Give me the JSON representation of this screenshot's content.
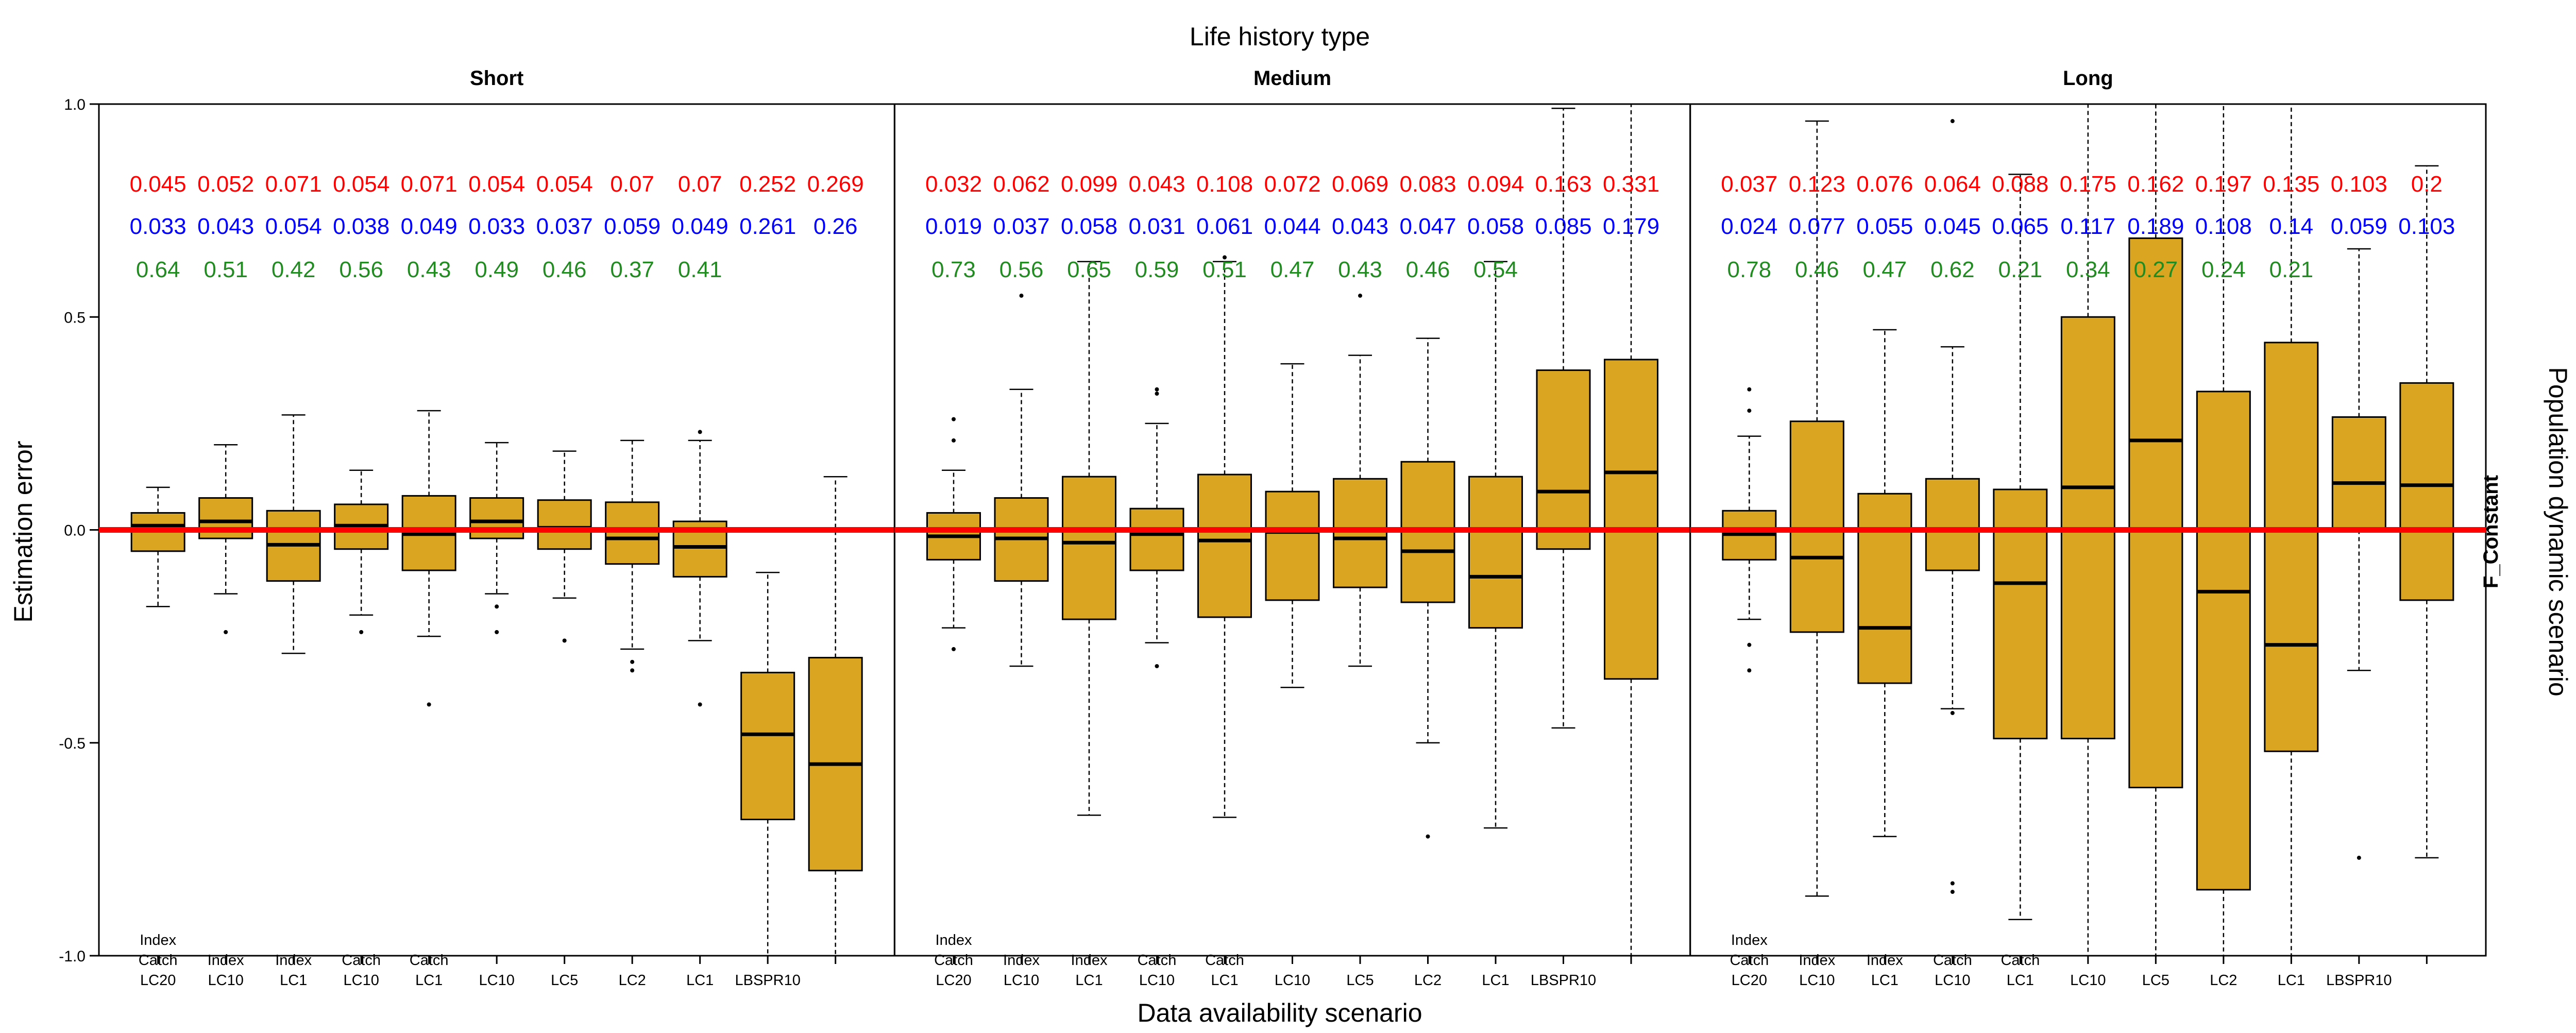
{
  "chart_data": {
    "type": "boxplot",
    "title": "Life history type",
    "xlabel": "Data availability scenario",
    "ylabel": "Estimation error",
    "right_label": "Population dynamic scenario",
    "strip_right": "F_Constant",
    "ylim": [
      -1.0,
      1.0
    ],
    "yticks": [
      "-1.0",
      "-0.5",
      "0.0",
      "0.5",
      "1.0"
    ],
    "reference_line": 0,
    "colors": {
      "box": "#DAA520",
      "reference": "#FF0000",
      "row1": "#FF0000",
      "row2": "#0000FF",
      "row3": "#228B22"
    },
    "panels": [
      {
        "label": "Short",
        "categories": [
          "Index\nCatch\nLC20",
          "Index\nLC10",
          "Index\nLC1",
          "Catch\nLC10",
          "Catch\nLC1",
          "LC10",
          "LC5",
          "LC2",
          "LC1",
          "LBSPR10",
          ""
        ],
        "row1": [
          "0.045",
          "0.052",
          "0.071",
          "0.054",
          "0.071",
          "0.054",
          "0.054",
          "0.07",
          "0.07",
          "0.252",
          "0.269"
        ],
        "row2": [
          "0.033",
          "0.043",
          "0.054",
          "0.038",
          "0.049",
          "0.033",
          "0.037",
          "0.059",
          "0.049",
          "0.261",
          "0.26"
        ],
        "row3": [
          "0.64",
          "0.51",
          "0.42",
          "0.56",
          "0.43",
          "0.49",
          "0.46",
          "0.37",
          "0.41",
          "",
          ""
        ],
        "boxes": [
          {
            "min": -0.18,
            "q1": -0.05,
            "median": 0.01,
            "q3": 0.04,
            "max": 0.1,
            "outliers": []
          },
          {
            "min": -0.15,
            "q1": -0.02,
            "median": 0.02,
            "q3": 0.075,
            "max": 0.2,
            "outliers": [
              -0.24
            ]
          },
          {
            "min": -0.29,
            "q1": -0.12,
            "median": -0.035,
            "q3": 0.045,
            "max": 0.27,
            "outliers": []
          },
          {
            "min": -0.2,
            "q1": -0.045,
            "median": 0.01,
            "q3": 0.06,
            "max": 0.14,
            "outliers": [
              -0.24
            ]
          },
          {
            "min": -0.25,
            "q1": -0.095,
            "median": -0.01,
            "q3": 0.08,
            "max": 0.28,
            "outliers": [
              -0.41
            ]
          },
          {
            "min": -0.15,
            "q1": -0.02,
            "median": 0.02,
            "q3": 0.075,
            "max": 0.205,
            "outliers": [
              -0.18,
              -0.24
            ]
          },
          {
            "min": -0.16,
            "q1": -0.045,
            "median": 0.005,
            "q3": 0.07,
            "max": 0.185,
            "outliers": [
              -0.26
            ]
          },
          {
            "min": -0.28,
            "q1": -0.08,
            "median": -0.02,
            "q3": 0.065,
            "max": 0.21,
            "outliers": [
              -0.31,
              -0.33
            ]
          },
          {
            "min": -0.26,
            "q1": -0.11,
            "median": -0.04,
            "q3": 0.02,
            "max": 0.21,
            "outliers": [
              0.23,
              -0.41
            ]
          },
          {
            "min": -1.0,
            "q1": -0.68,
            "median": -0.48,
            "q3": -0.335,
            "max": -0.1,
            "outliers": []
          },
          {
            "min": -1.0,
            "q1": -0.8,
            "median": -0.55,
            "q3": -0.3,
            "max": 0.125,
            "outliers": []
          }
        ]
      },
      {
        "label": "Medium",
        "categories": [
          "Index\nCatch\nLC20",
          "Index\nLC10",
          "Index\nLC1",
          "Catch\nLC10",
          "Catch\nLC1",
          "LC10",
          "LC5",
          "LC2",
          "LC1",
          "LBSPR10",
          ""
        ],
        "row1": [
          "0.032",
          "0.062",
          "0.099",
          "0.043",
          "0.108",
          "0.072",
          "0.069",
          "0.083",
          "0.094",
          "0.163",
          "0.331"
        ],
        "row2": [
          "0.019",
          "0.037",
          "0.058",
          "0.031",
          "0.061",
          "0.044",
          "0.043",
          "0.047",
          "0.058",
          "0.085",
          "0.179"
        ],
        "row3": [
          "0.73",
          "0.56",
          "0.65",
          "0.59",
          "0.51",
          "0.47",
          "0.43",
          "0.46",
          "0.54",
          "",
          ""
        ],
        "boxes": [
          {
            "min": -0.23,
            "q1": -0.07,
            "median": -0.015,
            "q3": 0.04,
            "max": 0.14,
            "outliers": [
              0.21,
              0.26,
              -0.28
            ]
          },
          {
            "min": -0.32,
            "q1": -0.12,
            "median": -0.02,
            "q3": 0.075,
            "max": 0.33,
            "outliers": [
              0.55
            ]
          },
          {
            "min": -0.67,
            "q1": -0.21,
            "median": -0.03,
            "q3": 0.125,
            "max": 0.63,
            "outliers": []
          },
          {
            "min": -0.265,
            "q1": -0.095,
            "median": -0.01,
            "q3": 0.05,
            "max": 0.25,
            "outliers": [
              0.32,
              0.33,
              -0.32
            ]
          },
          {
            "min": -0.675,
            "q1": -0.205,
            "median": -0.025,
            "q3": 0.13,
            "max": 0.63,
            "outliers": [
              0.64
            ]
          },
          {
            "min": -0.37,
            "q1": -0.165,
            "median": -0.005,
            "q3": 0.09,
            "max": 0.39,
            "outliers": []
          },
          {
            "min": -0.32,
            "q1": -0.135,
            "median": -0.02,
            "q3": 0.12,
            "max": 0.41,
            "outliers": [
              0.55
            ]
          },
          {
            "min": -0.5,
            "q1": -0.17,
            "median": -0.05,
            "q3": 0.16,
            "max": 0.45,
            "outliers": [
              -0.72
            ]
          },
          {
            "min": -0.7,
            "q1": -0.23,
            "median": -0.11,
            "q3": 0.125,
            "max": 0.63,
            "outliers": []
          },
          {
            "min": -0.465,
            "q1": -0.045,
            "median": 0.09,
            "q3": 0.375,
            "max": 0.99,
            "outliers": []
          },
          {
            "min": -1.0,
            "q1": -0.35,
            "median": 0.135,
            "q3": 0.4,
            "max": 1.0,
            "outliers": []
          }
        ]
      },
      {
        "label": "Long",
        "categories": [
          "Index\nCatch\nLC20",
          "Index\nLC10",
          "Index\nLC1",
          "Catch\nLC10",
          "Catch\nLC1",
          "LC10",
          "LC5",
          "LC2",
          "LC1",
          "LBSPR10",
          ""
        ],
        "row1": [
          "0.037",
          "0.123",
          "0.076",
          "0.064",
          "0.088",
          "0.175",
          "0.162",
          "0.197",
          "0.135",
          "0.103",
          "0.2"
        ],
        "row2": [
          "0.024",
          "0.077",
          "0.055",
          "0.045",
          "0.065",
          "0.117",
          "0.189",
          "0.108",
          "0.14",
          "0.059",
          "0.103"
        ],
        "row3": [
          "0.78",
          "0.46",
          "0.47",
          "0.62",
          "0.21",
          "0.34",
          "0.27",
          "0.24",
          "0.21",
          "",
          ""
        ],
        "boxes": [
          {
            "min": -0.21,
            "q1": -0.07,
            "median": -0.01,
            "q3": 0.045,
            "max": 0.22,
            "outliers": [
              0.28,
              0.33,
              -0.27,
              -0.33
            ]
          },
          {
            "min": -0.86,
            "q1": -0.24,
            "median": -0.065,
            "q3": 0.255,
            "max": 0.96,
            "outliers": []
          },
          {
            "min": -0.72,
            "q1": -0.36,
            "median": -0.23,
            "q3": 0.085,
            "max": 0.47,
            "outliers": []
          },
          {
            "min": -0.42,
            "q1": -0.095,
            "median": 0.0,
            "q3": 0.12,
            "max": 0.43,
            "outliers": [
              0.96,
              -0.43,
              -0.83,
              -0.85
            ]
          },
          {
            "min": -0.915,
            "q1": -0.49,
            "median": -0.125,
            "q3": 0.095,
            "max": 0.835,
            "outliers": []
          },
          {
            "min": -1.0,
            "q1": -0.49,
            "median": 0.1,
            "q3": 0.5,
            "max": 1.0,
            "outliers": []
          },
          {
            "min": -1.0,
            "q1": -0.605,
            "median": 0.21,
            "q3": 0.685,
            "max": 1.0,
            "outliers": []
          },
          {
            "min": -1.0,
            "q1": -0.845,
            "median": -0.145,
            "q3": 0.325,
            "max": 1.0,
            "outliers": []
          },
          {
            "min": -1.0,
            "q1": -0.52,
            "median": -0.27,
            "q3": 0.44,
            "max": 1.0,
            "outliers": []
          },
          {
            "min": -0.33,
            "q1": 0.0,
            "median": 0.11,
            "q3": 0.265,
            "max": 0.66,
            "outliers": [
              -0.77
            ]
          },
          {
            "min": -0.77,
            "q1": -0.165,
            "median": 0.105,
            "q3": 0.345,
            "max": 0.855,
            "outliers": []
          }
        ]
      }
    ]
  }
}
